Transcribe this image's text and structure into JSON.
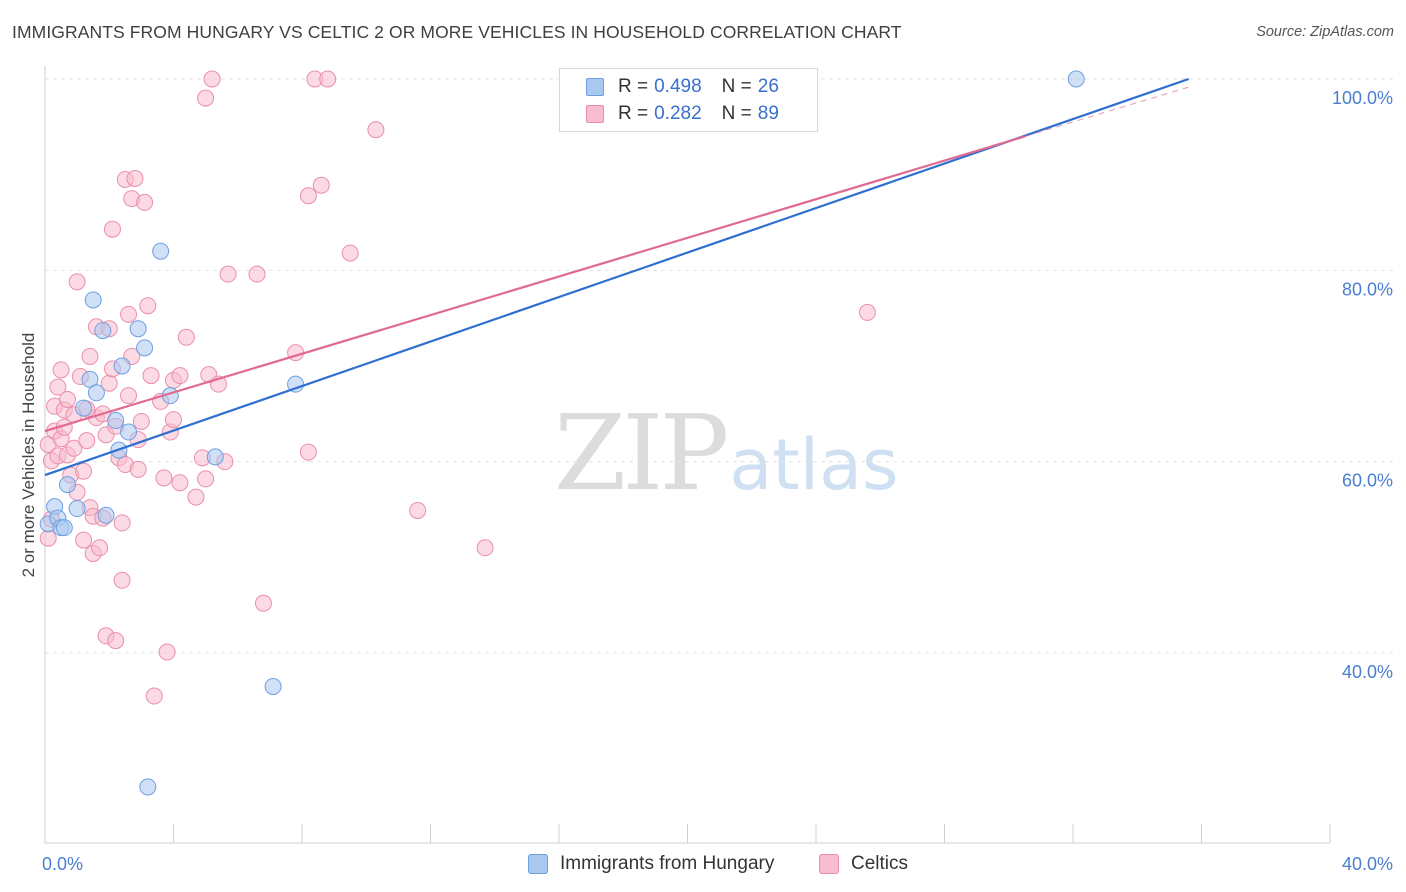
{
  "header": {
    "title": "IMMIGRANTS FROM HUNGARY VS CELTIC 2 OR MORE VEHICLES IN HOUSEHOLD CORRELATION CHART",
    "source": "Source: ZipAtlas.com"
  },
  "watermark": {
    "zip": "ZIP",
    "atlas": "atlas"
  },
  "legend": {
    "rows": [
      {
        "r_label": "R =",
        "r_value": "0.498",
        "n_label": "N =",
        "n_value": "26"
      },
      {
        "r_label": "R =",
        "r_value": "0.282",
        "n_label": "N =",
        "n_value": "89"
      }
    ]
  },
  "bottom_legend": {
    "series_a": "Immigrants from Hungary",
    "series_b": "Celtics"
  },
  "colors": {
    "blue_fill": "#a9c8f0",
    "blue_stroke": "#6d9fe0",
    "blue_line": "#2f6fd0",
    "pink_fill": "#f7bccd",
    "pink_stroke": "#ea8fab",
    "pink_line": "#e06a93",
    "tick_text": "#4a7fd0",
    "grid": "#e3e3e3"
  },
  "chart_data": {
    "type": "scatter",
    "title": "IMMIGRANTS FROM HUNGARY VS CELTIC 2 OR MORE VEHICLES IN HOUSEHOLD CORRELATION CHART",
    "xlabel": "",
    "ylabel": "2 or more Vehicles in Household",
    "xlim": [
      0,
      40
    ],
    "ylim": [
      20,
      102
    ],
    "x_tick_labels": [
      {
        "value": 0,
        "label": "0.0%"
      },
      {
        "value": 40,
        "label": "40.0%"
      }
    ],
    "y_tick_labels": [
      {
        "value": 100,
        "label": "100.0%"
      },
      {
        "value": 80,
        "label": "80.0%"
      },
      {
        "value": 60,
        "label": "60.0%"
      },
      {
        "value": 40,
        "label": "40.0%"
      }
    ],
    "grid": true,
    "legend_position": "top-center",
    "series": [
      {
        "name": "Immigrants from Hungary",
        "color_key": "blue",
        "R": 0.498,
        "N": 26,
        "trend": {
          "x0": 0,
          "y0": 58.6,
          "x1": 35.6,
          "y1": 100
        },
        "points": [
          [
            0.1,
            53.5
          ],
          [
            0.3,
            55.3
          ],
          [
            0.4,
            54.1
          ],
          [
            0.5,
            53.1
          ],
          [
            0.6,
            53.1
          ],
          [
            0.7,
            57.6
          ],
          [
            1.0,
            55.1
          ],
          [
            1.2,
            65.6
          ],
          [
            1.4,
            68.6
          ],
          [
            1.5,
            76.9
          ],
          [
            1.6,
            67.2
          ],
          [
            1.8,
            73.7
          ],
          [
            1.9,
            54.4
          ],
          [
            2.2,
            64.3
          ],
          [
            2.4,
            70.0
          ],
          [
            2.3,
            61.2
          ],
          [
            2.6,
            63.1
          ],
          [
            2.9,
            73.9
          ],
          [
            3.1,
            71.9
          ],
          [
            3.2,
            26.0
          ],
          [
            3.6,
            82.0
          ],
          [
            3.9,
            66.9
          ],
          [
            5.3,
            60.5
          ],
          [
            7.1,
            36.5
          ],
          [
            7.8,
            68.1
          ],
          [
            32.1,
            100.0
          ]
        ]
      },
      {
        "name": "Celtics",
        "color_key": "pink",
        "R": 0.282,
        "N": 89,
        "trend": {
          "x0": 0,
          "y0": 63.2,
          "x1": 30.5,
          "y1": 94.0
        },
        "points": [
          [
            0.1,
            52.0
          ],
          [
            0.1,
            61.8
          ],
          [
            0.2,
            60.1
          ],
          [
            0.3,
            63.2
          ],
          [
            0.3,
            65.8
          ],
          [
            0.4,
            60.6
          ],
          [
            0.4,
            67.8
          ],
          [
            0.5,
            69.6
          ],
          [
            0.5,
            62.4
          ],
          [
            0.6,
            65.4
          ],
          [
            0.7,
            66.5
          ],
          [
            0.7,
            60.7
          ],
          [
            0.8,
            58.6
          ],
          [
            0.9,
            64.9
          ],
          [
            0.9,
            61.4
          ],
          [
            1.0,
            56.8
          ],
          [
            1.0,
            78.8
          ],
          [
            1.1,
            68.9
          ],
          [
            1.2,
            59.0
          ],
          [
            1.2,
            51.8
          ],
          [
            1.3,
            62.2
          ],
          [
            1.4,
            71.0
          ],
          [
            1.4,
            55.2
          ],
          [
            1.5,
            54.3
          ],
          [
            1.5,
            50.4
          ],
          [
            1.6,
            74.1
          ],
          [
            1.6,
            64.6
          ],
          [
            1.7,
            51.0
          ],
          [
            1.8,
            65.0
          ],
          [
            1.8,
            54.1
          ],
          [
            1.9,
            41.8
          ],
          [
            1.9,
            62.8
          ],
          [
            2.0,
            73.9
          ],
          [
            2.0,
            68.2
          ],
          [
            2.1,
            69.7
          ],
          [
            2.1,
            84.3
          ],
          [
            2.2,
            63.7
          ],
          [
            2.2,
            41.3
          ],
          [
            2.3,
            60.4
          ],
          [
            2.4,
            53.6
          ],
          [
            2.4,
            47.6
          ],
          [
            2.5,
            89.5
          ],
          [
            2.5,
            59.7
          ],
          [
            2.6,
            75.4
          ],
          [
            2.6,
            66.9
          ],
          [
            2.7,
            87.5
          ],
          [
            2.8,
            89.6
          ],
          [
            2.9,
            62.3
          ],
          [
            2.9,
            59.2
          ],
          [
            3.0,
            64.2
          ],
          [
            3.1,
            87.1
          ],
          [
            3.2,
            76.3
          ],
          [
            3.3,
            69.0
          ],
          [
            3.4,
            35.5
          ],
          [
            3.6,
            66.3
          ],
          [
            3.8,
            40.1
          ],
          [
            3.9,
            63.1
          ],
          [
            4.0,
            68.5
          ],
          [
            4.0,
            64.4
          ],
          [
            4.2,
            69.0
          ],
          [
            4.2,
            57.8
          ],
          [
            4.4,
            73.0
          ],
          [
            4.7,
            56.3
          ],
          [
            4.9,
            60.4
          ],
          [
            5.0,
            58.2
          ],
          [
            5.0,
            98.0
          ],
          [
            5.1,
            69.1
          ],
          [
            5.2,
            100.0
          ],
          [
            5.4,
            68.1
          ],
          [
            5.6,
            60.0
          ],
          [
            5.7,
            79.6
          ],
          [
            6.6,
            79.6
          ],
          [
            6.8,
            45.2
          ],
          [
            7.8,
            71.4
          ],
          [
            8.2,
            61.0
          ],
          [
            8.2,
            87.8
          ],
          [
            8.4,
            100.0
          ],
          [
            8.6,
            88.9
          ],
          [
            8.8,
            100.0
          ],
          [
            9.5,
            81.8
          ],
          [
            10.3,
            94.7
          ],
          [
            11.6,
            54.9
          ],
          [
            13.7,
            51.0
          ],
          [
            25.6,
            75.6
          ],
          [
            0.2,
            54.0
          ],
          [
            0.6,
            63.6
          ],
          [
            1.3,
            65.5
          ],
          [
            2.7,
            71.0
          ],
          [
            3.7,
            58.3
          ]
        ]
      }
    ]
  }
}
